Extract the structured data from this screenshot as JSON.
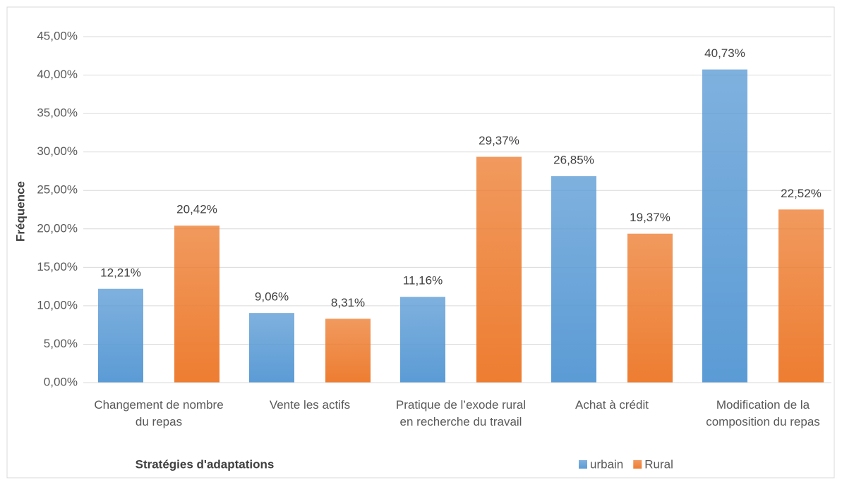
{
  "chart_data": {
    "type": "bar",
    "x_label": "Stratégies d'adaptations",
    "y_label": "Fréquence",
    "categories": [
      "Changement de nombre du repas",
      "Vente les actifs",
      "Pratique de l’exode rural en recherche du travail",
      "Achat à crédit",
      "Modification de la composition du repas"
    ],
    "series": [
      {
        "name": "urbain",
        "color": "#5b9bd5",
        "values": [
          12.21,
          9.06,
          11.16,
          26.85,
          40.73
        ],
        "value_labels": [
          "12,21%",
          "9,06%",
          "11,16%",
          "26,85%",
          "40,73%"
        ]
      },
      {
        "name": "Rural",
        "color": "#ed7d31",
        "values": [
          20.42,
          8.31,
          29.37,
          19.37,
          22.52
        ],
        "value_labels": [
          "20,42%",
          "8,31%",
          "29,37%",
          "19,37%",
          "22,52%"
        ]
      }
    ],
    "ylim": [
      0,
      45
    ],
    "yticks": [
      {
        "value": 0,
        "label": "0,00%"
      },
      {
        "value": 5,
        "label": "5,00%"
      },
      {
        "value": 10,
        "label": "10,00%"
      },
      {
        "value": 15,
        "label": "15,00%"
      },
      {
        "value": 20,
        "label": "20,00%"
      },
      {
        "value": 25,
        "label": "25,00%"
      },
      {
        "value": 30,
        "label": "30,00%"
      },
      {
        "value": 35,
        "label": "35,00%"
      },
      {
        "value": 40,
        "label": "40,00%"
      },
      {
        "value": 45,
        "label": "45,00%"
      }
    ],
    "grid": true,
    "legend": "bottom-right"
  }
}
